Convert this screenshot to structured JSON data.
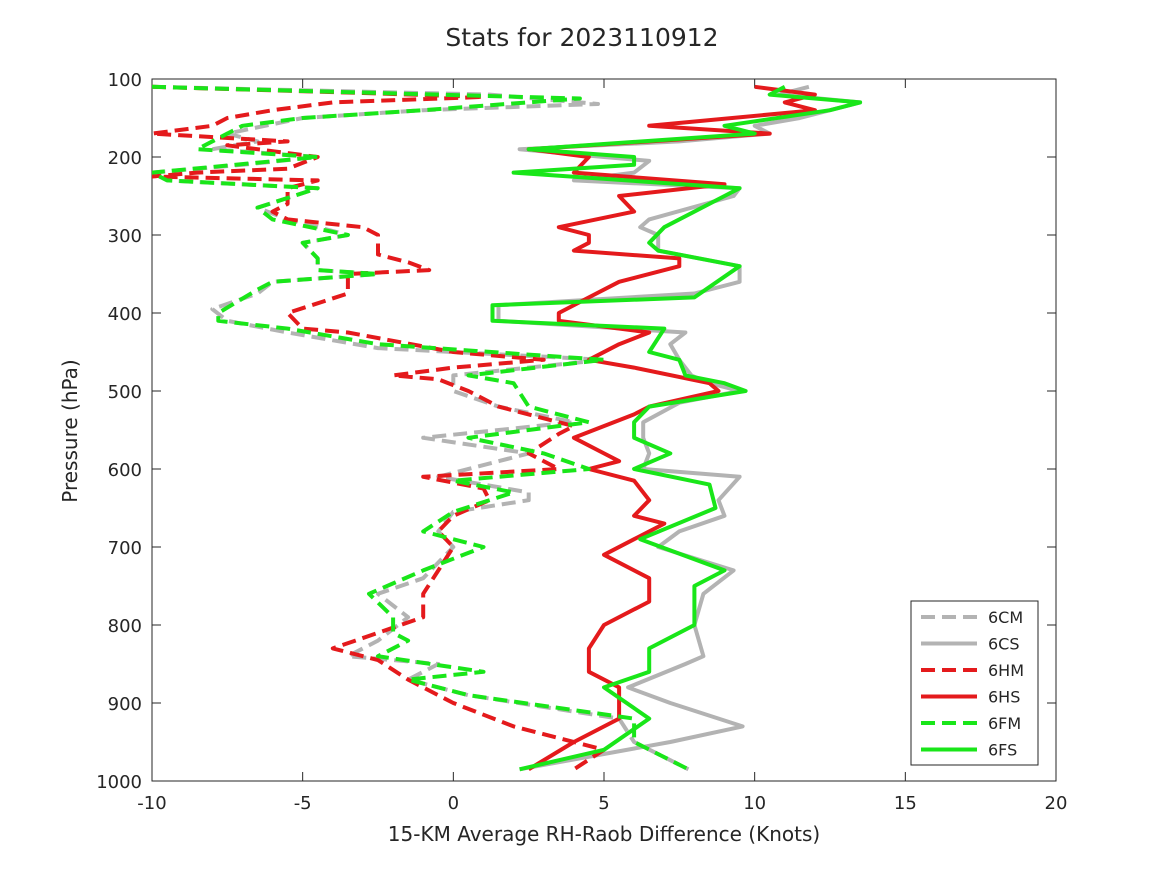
{
  "chart_data": {
    "type": "line",
    "title": "Stats for 2023110912",
    "xlabel": "15-KM Average RH-Raob Difference (Knots)",
    "ylabel": "Pressure (hPa)",
    "xlim": [
      -10,
      20
    ],
    "ylim": [
      100,
      1000
    ],
    "y_reversed": true,
    "xticks": [
      "-10",
      "-5",
      "0",
      "5",
      "10",
      "15",
      "20"
    ],
    "yticks": [
      "100",
      "200",
      "300",
      "400",
      "500",
      "600",
      "700",
      "800",
      "900",
      "1000"
    ],
    "legend_position": "bottom-right",
    "grid": false,
    "series": [
      {
        "name": "6CM",
        "color": "#b3b3b3",
        "dashed": true,
        "points": [
          [
            -10,
            110
          ],
          [
            1.2,
            120
          ],
          [
            4.8,
            132
          ],
          [
            -1,
            140
          ],
          [
            -5,
            150
          ],
          [
            -7.5,
            170
          ],
          [
            -6.5,
            180
          ],
          [
            -8,
            190
          ],
          [
            -4.5,
            200
          ],
          [
            -7,
            210
          ],
          [
            -10,
            220
          ],
          [
            -9.5,
            230
          ],
          [
            -4.5,
            240
          ],
          [
            -6.5,
            265
          ],
          [
            -5.5,
            280
          ],
          [
            -3.5,
            300
          ],
          [
            -5,
            310
          ],
          [
            -4.5,
            330
          ],
          [
            -4.5,
            345
          ],
          [
            -2.5,
            350
          ],
          [
            -6,
            360
          ],
          [
            -6.5,
            375
          ],
          [
            -8,
            395
          ],
          [
            -7.5,
            410
          ],
          [
            -5.5,
            425
          ],
          [
            -2.5,
            445
          ],
          [
            5,
            460
          ],
          [
            0,
            480
          ],
          [
            0,
            500
          ],
          [
            1.5,
            520
          ],
          [
            4,
            540
          ],
          [
            -1,
            560
          ],
          [
            2.5,
            580
          ],
          [
            -0.5,
            610
          ],
          [
            2.5,
            630
          ],
          [
            2.5,
            640
          ],
          [
            0,
            655
          ],
          [
            -0.5,
            680
          ],
          [
            0,
            700
          ],
          [
            -1,
            740
          ],
          [
            -2.5,
            760
          ],
          [
            -1.5,
            790
          ],
          [
            -2.5,
            820
          ],
          [
            -3.5,
            840
          ],
          [
            -0.5,
            850
          ],
          [
            -1.5,
            870
          ],
          [
            0.5,
            890
          ],
          [
            5.5,
            920
          ],
          [
            6,
            950
          ],
          [
            7.8,
            985
          ]
        ]
      },
      {
        "name": "6CS",
        "color": "#b3b3b3",
        "dashed": false,
        "points": [
          [
            11.8,
            110
          ],
          [
            10.8,
            120
          ],
          [
            13.5,
            130
          ],
          [
            12.5,
            140
          ],
          [
            11.5,
            150
          ],
          [
            10,
            160
          ],
          [
            10.5,
            170
          ],
          [
            7.5,
            180
          ],
          [
            2.2,
            190
          ],
          [
            5,
            200
          ],
          [
            6.5,
            205
          ],
          [
            6,
            220
          ],
          [
            4,
            230
          ],
          [
            9.5,
            240
          ],
          [
            9.3,
            250
          ],
          [
            6.5,
            280
          ],
          [
            6.2,
            290
          ],
          [
            6.8,
            300
          ],
          [
            6.8,
            320
          ],
          [
            9.5,
            340
          ],
          [
            9.5,
            360
          ],
          [
            8,
            375
          ],
          [
            1.5,
            390
          ],
          [
            1.5,
            410
          ],
          [
            7.7,
            425
          ],
          [
            7.2,
            440
          ],
          [
            7.5,
            460
          ],
          [
            7.9,
            480
          ],
          [
            8.5,
            490
          ],
          [
            9.5,
            500
          ],
          [
            7.5,
            515
          ],
          [
            6.3,
            540
          ],
          [
            6.3,
            560
          ],
          [
            6.5,
            580
          ],
          [
            6.3,
            600
          ],
          [
            9.5,
            610
          ],
          [
            8.8,
            640
          ],
          [
            9,
            660
          ],
          [
            7.5,
            680
          ],
          [
            6.8,
            700
          ],
          [
            9.3,
            730
          ],
          [
            8.3,
            760
          ],
          [
            8,
            800
          ],
          [
            8.3,
            840
          ],
          [
            7.7,
            850
          ],
          [
            5.8,
            880
          ],
          [
            7.2,
            900
          ],
          [
            9.6,
            930
          ],
          [
            7.2,
            950
          ],
          [
            2.2,
            985
          ]
        ]
      },
      {
        "name": "6HM",
        "color": "#e41a1c",
        "dashed": true,
        "points": [
          [
            -10,
            110
          ],
          [
            -3,
            118
          ],
          [
            1,
            123
          ],
          [
            -4,
            130
          ],
          [
            -6,
            140
          ],
          [
            -7.5,
            150
          ],
          [
            -8,
            160
          ],
          [
            -10,
            170
          ],
          [
            -5.5,
            180
          ],
          [
            -7.5,
            185
          ],
          [
            -4.5,
            200
          ],
          [
            -5.5,
            215
          ],
          [
            -8.5,
            220
          ],
          [
            -10,
            225
          ],
          [
            -4.5,
            230
          ],
          [
            -5.5,
            240
          ],
          [
            -5.5,
            260
          ],
          [
            -6,
            270
          ],
          [
            -5.5,
            280
          ],
          [
            -3,
            290
          ],
          [
            -2.5,
            300
          ],
          [
            -2.5,
            325
          ],
          [
            -1.5,
            335
          ],
          [
            -0.8,
            345
          ],
          [
            -3.5,
            350
          ],
          [
            -3.5,
            375
          ],
          [
            -5.5,
            400
          ],
          [
            -5,
            420
          ],
          [
            -3.5,
            425
          ],
          [
            0,
            450
          ],
          [
            3,
            460
          ],
          [
            0,
            470
          ],
          [
            -2,
            480
          ],
          [
            -0.5,
            485
          ],
          [
            0.5,
            500
          ],
          [
            1.5,
            520
          ],
          [
            4,
            545
          ],
          [
            3.5,
            555
          ],
          [
            2.5,
            580
          ],
          [
            3.5,
            600
          ],
          [
            -1,
            610
          ],
          [
            1,
            625
          ],
          [
            1.2,
            640
          ],
          [
            0,
            660
          ],
          [
            -0.5,
            680
          ],
          [
            0,
            700
          ],
          [
            -0.5,
            730
          ],
          [
            -1,
            760
          ],
          [
            -1,
            790
          ],
          [
            -4,
            830
          ],
          [
            -2.5,
            845
          ],
          [
            -1.5,
            870
          ],
          [
            0,
            900
          ],
          [
            2,
            930
          ],
          [
            5,
            960
          ],
          [
            4,
            985
          ]
        ]
      },
      {
        "name": "6HS",
        "color": "#e41a1c",
        "dashed": false,
        "points": [
          [
            10,
            110
          ],
          [
            12,
            120
          ],
          [
            11,
            130
          ],
          [
            12,
            140
          ],
          [
            6.5,
            160
          ],
          [
            10.5,
            170
          ],
          [
            2.5,
            190
          ],
          [
            4.5,
            200
          ],
          [
            4,
            220
          ],
          [
            9,
            235
          ],
          [
            5.5,
            250
          ],
          [
            6,
            270
          ],
          [
            3.5,
            290
          ],
          [
            4.5,
            300
          ],
          [
            4.5,
            310
          ],
          [
            4.0,
            320
          ],
          [
            7.5,
            330
          ],
          [
            7.5,
            340
          ],
          [
            5.5,
            360
          ],
          [
            4.5,
            380
          ],
          [
            3.5,
            400
          ],
          [
            3.5,
            410
          ],
          [
            6.5,
            425
          ],
          [
            5.5,
            440
          ],
          [
            4.5,
            460
          ],
          [
            6,
            470
          ],
          [
            8.5,
            490
          ],
          [
            8.8,
            500
          ],
          [
            6.5,
            520
          ],
          [
            6,
            530
          ],
          [
            4,
            560
          ],
          [
            5,
            580
          ],
          [
            5.5,
            590
          ],
          [
            4.5,
            600
          ],
          [
            6,
            615
          ],
          [
            6.5,
            640
          ],
          [
            6,
            660
          ],
          [
            7,
            670
          ],
          [
            6,
            690
          ],
          [
            5,
            710
          ],
          [
            6.5,
            740
          ],
          [
            6.5,
            770
          ],
          [
            5,
            800
          ],
          [
            4.5,
            830
          ],
          [
            4.5,
            860
          ],
          [
            5.5,
            880
          ],
          [
            5.5,
            900
          ],
          [
            5.5,
            920
          ],
          [
            4,
            950
          ],
          [
            2.5,
            985
          ]
        ]
      },
      {
        "name": "6FM",
        "color": "#19e619",
        "dashed": true,
        "points": [
          [
            -10,
            110
          ],
          [
            4.2,
            125
          ],
          [
            -1,
            140
          ],
          [
            -5,
            150
          ],
          [
            -7,
            160
          ],
          [
            -8.5,
            190
          ],
          [
            -4.5,
            200
          ],
          [
            -10,
            220
          ],
          [
            -9.5,
            230
          ],
          [
            -4.5,
            240
          ],
          [
            -6.5,
            265
          ],
          [
            -6,
            280
          ],
          [
            -3.5,
            300
          ],
          [
            -5,
            310
          ],
          [
            -4.5,
            330
          ],
          [
            -4.5,
            345
          ],
          [
            -2.5,
            350
          ],
          [
            -6,
            360
          ],
          [
            -6.5,
            370
          ],
          [
            -7.8,
            400
          ],
          [
            -7.8,
            410
          ],
          [
            -5.5,
            420
          ],
          [
            -2.5,
            440
          ],
          [
            5,
            460
          ],
          [
            0.5,
            480
          ],
          [
            2,
            490
          ],
          [
            2.5,
            520
          ],
          [
            4.5,
            540
          ],
          [
            0.5,
            560
          ],
          [
            3,
            580
          ],
          [
            4.5,
            600
          ],
          [
            0,
            615
          ],
          [
            2,
            630
          ],
          [
            0,
            655
          ],
          [
            -1,
            680
          ],
          [
            1,
            700
          ],
          [
            -1,
            730
          ],
          [
            -2.8,
            760
          ],
          [
            -2,
            790
          ],
          [
            -2,
            810
          ],
          [
            -1.5,
            820
          ],
          [
            -2.5,
            840
          ],
          [
            1,
            860
          ],
          [
            -1.5,
            870
          ],
          [
            0.5,
            890
          ],
          [
            6,
            920
          ],
          [
            6,
            950
          ],
          [
            7.8,
            985
          ]
        ]
      },
      {
        "name": "6FS",
        "color": "#19e619",
        "dashed": false,
        "points": [
          [
            11,
            110
          ],
          [
            10.5,
            120
          ],
          [
            13.5,
            130
          ],
          [
            12.5,
            140
          ],
          [
            9,
            160
          ],
          [
            10,
            170
          ],
          [
            2.5,
            190
          ],
          [
            6,
            200
          ],
          [
            6,
            210
          ],
          [
            2,
            220
          ],
          [
            9.5,
            240
          ],
          [
            9,
            250
          ],
          [
            7,
            290
          ],
          [
            6.5,
            310
          ],
          [
            6.8,
            320
          ],
          [
            9.5,
            340
          ],
          [
            8,
            380
          ],
          [
            1.3,
            390
          ],
          [
            1.3,
            410
          ],
          [
            7,
            420
          ],
          [
            6.5,
            450
          ],
          [
            7.5,
            460
          ],
          [
            7.7,
            480
          ],
          [
            9,
            490
          ],
          [
            9.7,
            500
          ],
          [
            6.5,
            520
          ],
          [
            6,
            540
          ],
          [
            6,
            560
          ],
          [
            7.2,
            580
          ],
          [
            6,
            600
          ],
          [
            8.5,
            620
          ],
          [
            8.7,
            650
          ],
          [
            6.2,
            690
          ],
          [
            9,
            730
          ],
          [
            8,
            750
          ],
          [
            8,
            800
          ],
          [
            6.5,
            830
          ],
          [
            6.5,
            860
          ],
          [
            5,
            880
          ],
          [
            6.5,
            920
          ],
          [
            5,
            960
          ],
          [
            2.2,
            985
          ]
        ]
      }
    ]
  }
}
